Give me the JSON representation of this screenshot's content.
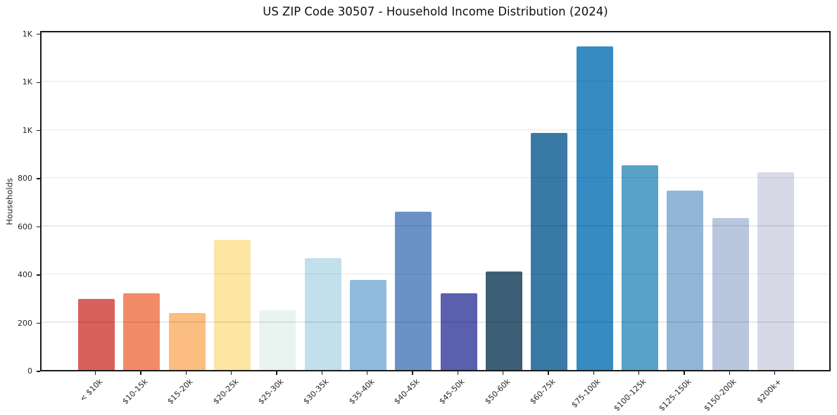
{
  "chart_data": {
    "type": "bar",
    "title": "US ZIP Code 30507 - Household Income Distribution (2024)",
    "xlabel": "",
    "ylabel": "Households",
    "categories": [
      "< $10k",
      "$10-15k",
      "$15-20k",
      "$20-25k",
      "$25-30k",
      "$30-35k",
      "$35-40k",
      "$40-45k",
      "$45-50k",
      "$50-60k",
      "$60-75k",
      "$75-100k",
      "$100-125k",
      "$125-150k",
      "$150-200k",
      "$200k+"
    ],
    "values": [
      295,
      318,
      238,
      540,
      249,
      465,
      373,
      657,
      318,
      410,
      984,
      1345,
      850,
      746,
      631,
      820
    ],
    "bar_colors": [
      "#d8615b",
      "#f28b68",
      "#fcbd80",
      "#fde5a2",
      "#e9f4f1",
      "#c2dfec",
      "#8fbcdd",
      "#6b92c7",
      "#5a5fae",
      "#3c5f75",
      "#387aa5",
      "#358bc2",
      "#58a2c8",
      "#92b6d8",
      "#b9c7de",
      "#d7d9e7"
    ],
    "yticks": [
      0,
      200,
      400,
      600,
      800,
      1000,
      1200,
      1400
    ],
    "ytick_labels": [
      "0",
      "200",
      "400",
      "600",
      "800",
      "1K",
      "1K",
      "1K"
    ],
    "ylim": [
      0,
      1414
    ],
    "grid": "horizontal",
    "legend": "none",
    "background": "#ffffff",
    "spine_color": "#1a1a1a",
    "gridline_color": "#e8e8e8"
  }
}
